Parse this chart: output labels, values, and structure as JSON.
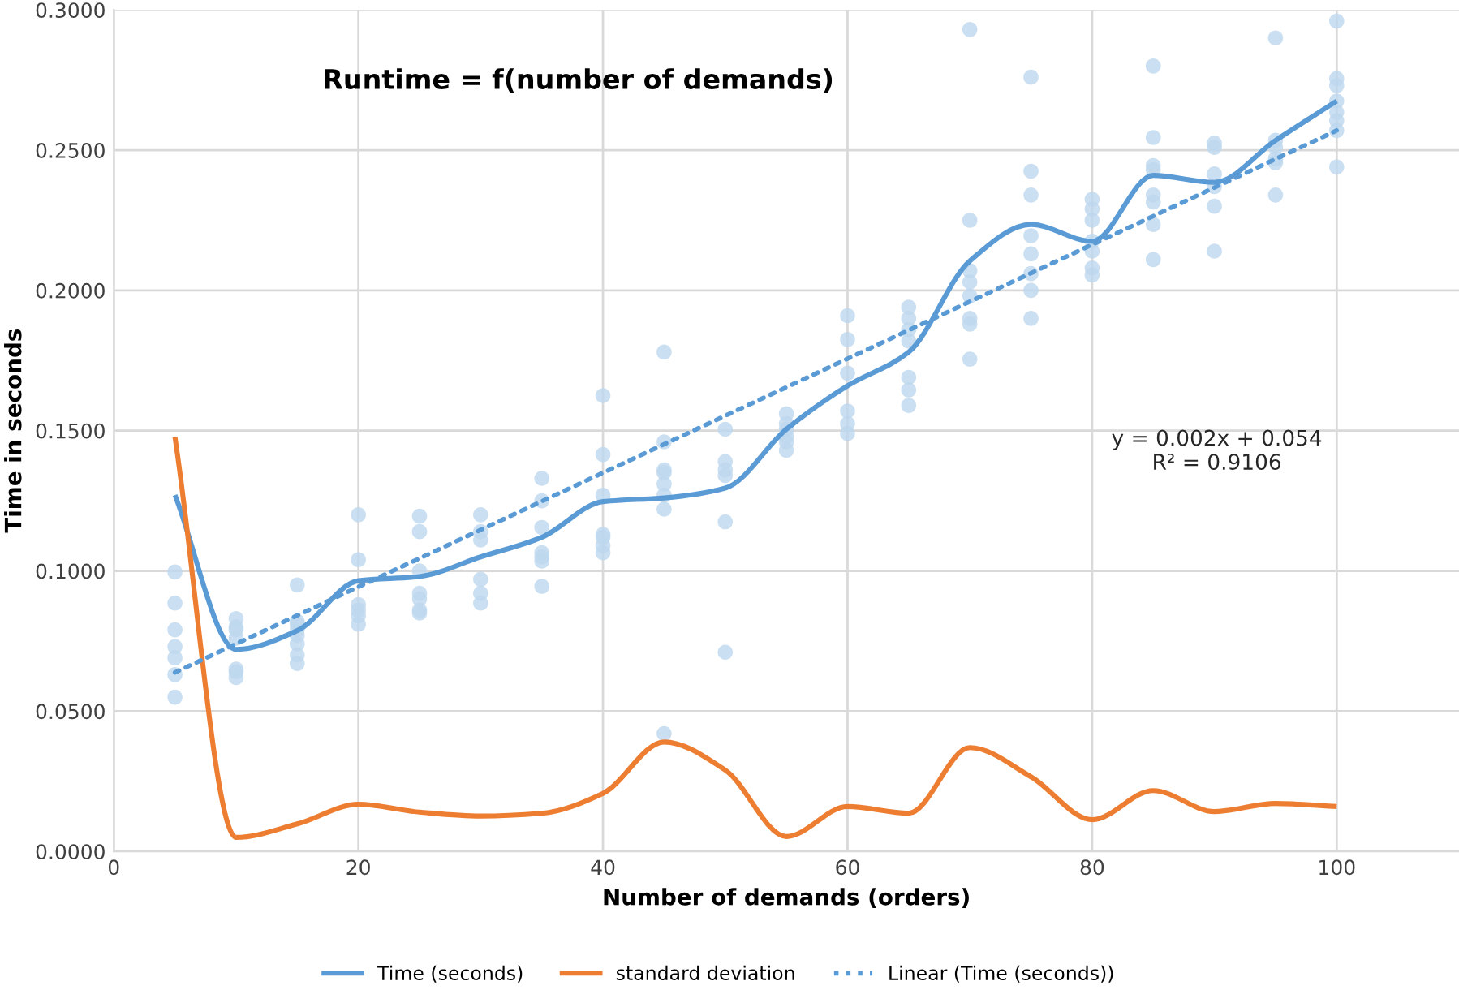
{
  "chart_data": {
    "type": "line",
    "title": "Runtime = f(number of demands)",
    "xlabel": "Number of demands (orders)",
    "ylabel": "Time in seconds",
    "annotations": [
      "y = 0.002x + 0.054\nR² = 0.9106"
    ],
    "xlim": [
      0,
      110
    ],
    "xticks": [
      0,
      20,
      40,
      60,
      80,
      100
    ],
    "ylim": [
      0,
      0.3
    ],
    "yticks": [
      {
        "value": 0,
        "label": "0.0000"
      },
      {
        "value": 0.05,
        "label": "0.0500"
      },
      {
        "value": 0.1,
        "label": "0.1000"
      },
      {
        "value": 0.15,
        "label": "0.1500"
      },
      {
        "value": 0.2,
        "label": "0.2000"
      },
      {
        "value": 0.25,
        "label": "0.2500"
      },
      {
        "value": 0.3,
        "label": "0.3000"
      }
    ],
    "grid": true,
    "legend": "bottom",
    "line_style": "solid",
    "x": [
      5,
      10,
      15,
      20,
      25,
      30,
      35,
      40,
      45,
      50,
      55,
      60,
      65,
      70,
      75,
      80,
      85,
      90,
      95,
      100
    ],
    "series": [
      {
        "type": "scatter",
        "color": "#bdd7ee",
        "marker": "circle",
        "x": [
          5,
          5,
          5,
          5,
          5,
          5,
          5,
          10,
          10,
          10,
          10,
          10,
          10,
          10,
          15,
          15,
          15,
          15,
          15,
          15,
          15,
          15,
          20,
          20,
          20,
          20,
          20,
          20,
          25,
          25,
          25,
          25,
          25,
          25,
          25,
          30,
          30,
          30,
          30,
          30,
          30,
          35,
          35,
          35,
          35,
          35,
          35,
          35,
          40,
          40,
          40,
          40,
          40,
          40,
          40,
          45,
          45,
          45,
          45,
          45,
          45,
          45,
          45,
          50,
          50,
          50,
          50,
          50,
          50,
          55,
          55,
          55,
          55,
          55,
          55,
          60,
          60,
          60,
          60,
          60,
          60,
          65,
          65,
          65,
          65,
          65,
          65,
          65,
          70,
          70,
          70,
          70,
          70,
          70,
          70,
          70,
          75,
          75,
          75,
          75,
          75,
          75,
          75,
          75,
          80,
          80,
          80,
          80,
          80,
          80,
          80,
          85,
          85,
          85,
          85,
          85,
          85,
          85,
          85,
          90,
          90,
          90,
          90,
          90,
          90,
          95,
          95,
          95,
          95,
          95,
          95,
          100,
          100,
          100,
          100,
          100,
          100,
          100,
          100
        ],
        "values": [
          0.0996,
          0.0885,
          0.079,
          0.073,
          0.069,
          0.063,
          0.055,
          0.083,
          0.08,
          0.079,
          0.076,
          0.065,
          0.064,
          0.062,
          0.095,
          0.082,
          0.081,
          0.079,
          0.077,
          0.074,
          0.07,
          0.067,
          0.12,
          0.104,
          0.088,
          0.086,
          0.084,
          0.081,
          0.1195,
          0.114,
          0.1,
          0.092,
          0.09,
          0.086,
          0.085,
          0.12,
          0.114,
          0.111,
          0.097,
          0.092,
          0.0885,
          0.133,
          0.125,
          0.1155,
          0.1065,
          0.105,
          0.1035,
          0.0945,
          0.1625,
          0.1415,
          0.127,
          0.113,
          0.112,
          0.109,
          0.1065,
          0.178,
          0.146,
          0.136,
          0.135,
          0.131,
          0.127,
          0.122,
          0.042,
          0.1505,
          0.139,
          0.136,
          0.134,
          0.1175,
          0.071,
          0.156,
          0.1525,
          0.1505,
          0.148,
          0.146,
          0.143,
          0.191,
          0.1825,
          0.1705,
          0.157,
          0.1525,
          0.149,
          0.194,
          0.19,
          0.186,
          0.182,
          0.169,
          0.1645,
          0.159,
          0.293,
          0.225,
          0.207,
          0.203,
          0.198,
          0.19,
          0.188,
          0.1755,
          0.276,
          0.2425,
          0.234,
          0.2195,
          0.213,
          0.206,
          0.2,
          0.19,
          0.2325,
          0.229,
          0.225,
          0.2175,
          0.214,
          0.208,
          0.2055,
          0.28,
          0.2545,
          0.2445,
          0.243,
          0.234,
          0.2315,
          0.2235,
          0.211,
          0.2525,
          0.251,
          0.2415,
          0.237,
          0.23,
          0.214,
          0.29,
          0.2535,
          0.251,
          0.247,
          0.2455,
          0.234,
          0.296,
          0.2755,
          0.273,
          0.2675,
          0.2635,
          0.2605,
          0.257,
          0.244
        ]
      },
      {
        "name": "Time (seconds)",
        "color": "#5b9bd5",
        "values": [
          0.127,
          0.072,
          0.0787,
          0.0965,
          0.098,
          0.105,
          0.112,
          0.1247,
          0.126,
          0.1295,
          0.1505,
          0.166,
          0.178,
          0.2105,
          0.2235,
          0.2175,
          0.241,
          0.2385,
          0.2535,
          0.2675
        ]
      },
      {
        "name": "standard deviation",
        "color": "#ed7d31",
        "values": [
          0.1477,
          0.005,
          0.0098,
          0.0168,
          0.014,
          0.0126,
          0.0136,
          0.0207,
          0.039,
          0.029,
          0.0053,
          0.016,
          0.0136,
          0.037,
          0.0266,
          0.0113,
          0.0217,
          0.0142,
          0.0171,
          0.016
        ]
      },
      {
        "name": "Linear (Time (seconds))",
        "color": "#5b9bd5",
        "line_style": "dotted",
        "x": [
          5,
          100
        ],
        "values": [
          0.0638,
          0.257
        ]
      }
    ]
  }
}
